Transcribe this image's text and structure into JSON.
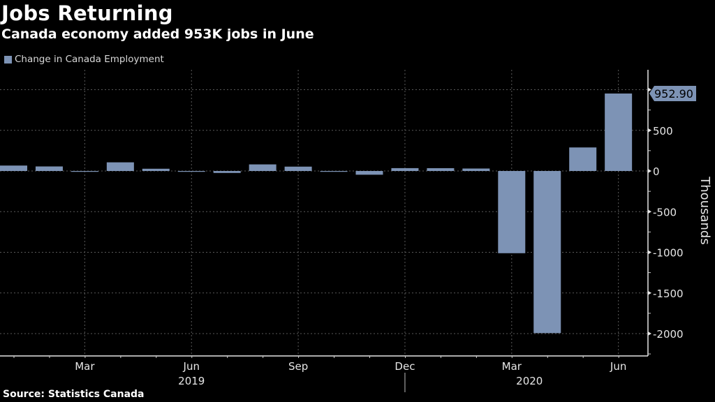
{
  "header": {
    "title": "Jobs Returning",
    "subtitle": "Canada economy added 953K jobs in June"
  },
  "legend": {
    "label": "Change in Canada Employment",
    "color": "#7d93b5"
  },
  "footer": {
    "source": "Source: Statistics Canada"
  },
  "chart_data": {
    "type": "bar",
    "title": "Jobs Returning",
    "subtitle": "Canada economy added 953K jobs in June",
    "xlabel": "",
    "ylabel": "Thousands",
    "ylim": [
      -2150,
      1150
    ],
    "y_ticks": [
      1000,
      500,
      0,
      -500,
      -1000,
      -1500,
      -2000
    ],
    "y_tick_labels": [
      "1000",
      "500",
      "0",
      "-500",
      "-1000",
      "-1500",
      "-2000"
    ],
    "grid": true,
    "legend_position": "top-left",
    "y_axis_side": "right",
    "categories": [
      "Jan 2019",
      "Feb 2019",
      "Mar 2019",
      "Apr 2019",
      "May 2019",
      "Jun 2019",
      "Jul 2019",
      "Aug 2019",
      "Sep 2019",
      "Oct 2019",
      "Nov 2019",
      "Dec 2019",
      "Jan 2020",
      "Feb 2020",
      "Mar 2020",
      "Apr 2020",
      "May 2020",
      "Jun 2020"
    ],
    "series": [
      {
        "name": "Change in Canada Employment",
        "color": "#7d93b5",
        "values": [
          66.8,
          55.9,
          -7.2,
          106.5,
          27.7,
          -2.2,
          -24.2,
          81.1,
          53.7,
          -1.8,
          -46.0,
          35.2,
          34.5,
          30.3,
          -1011.2,
          -1993.8,
          289.6,
          952.9
        ]
      }
    ],
    "x_tick_labels": [
      {
        "index": 2,
        "label": "Mar"
      },
      {
        "index": 5,
        "label": "Jun"
      },
      {
        "index": 8,
        "label": "Sep"
      },
      {
        "index": 11,
        "label": "Dec"
      },
      {
        "index": 14,
        "label": "Mar"
      },
      {
        "index": 17,
        "label": "Jun"
      }
    ],
    "year_labels": [
      {
        "index": 5,
        "label": "2019"
      },
      {
        "index": 14.5,
        "label": "2020"
      }
    ],
    "annotations": [
      {
        "index": 17,
        "label": "952.90"
      }
    ]
  }
}
